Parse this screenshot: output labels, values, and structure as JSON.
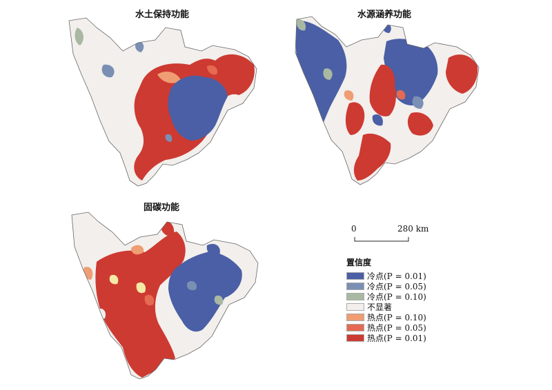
{
  "maps": [
    {
      "title": "水土保持功能"
    },
    {
      "title": "水源涵养功能"
    },
    {
      "title": "固碳功能"
    }
  ],
  "scale_bar": {
    "start": "0",
    "end": "280 km"
  },
  "legend": {
    "title": "置信度",
    "items": [
      {
        "label": "冷点(P = 0.01)",
        "color": "#4a5fa5"
      },
      {
        "label": "冷点(P = 0.05)",
        "color": "#7a8fb3"
      },
      {
        "label": "冷点(P = 0.10)",
        "color": "#a9b8a3"
      },
      {
        "label": "不显著",
        "color": "#f2efec"
      },
      {
        "label": "热点(P = 0.10)",
        "color": "#ef9d73"
      },
      {
        "label": "热点(P = 0.05)",
        "color": "#e56a52"
      },
      {
        "label": "热点(P = 0.01)",
        "color": "#cd3a32"
      }
    ]
  }
}
